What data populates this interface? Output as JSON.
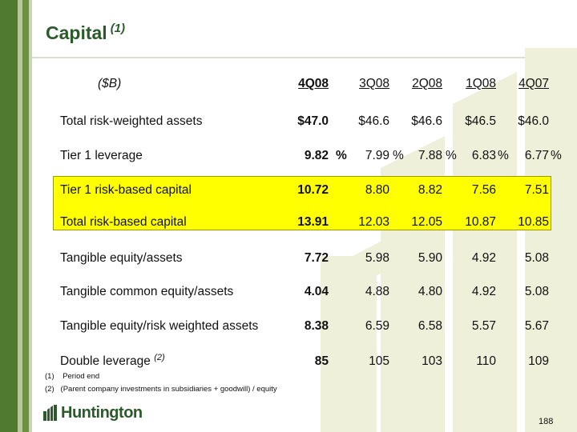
{
  "title": "Capital",
  "title_footnote": "(1)",
  "units": "($B)",
  "columns": [
    "4Q08",
    "3Q08",
    "2Q08",
    "1Q08",
    "4Q07"
  ],
  "rows": [
    {
      "label": "Total risk-weighted assets",
      "sup": "",
      "values": [
        "$47.0",
        "$46.6",
        "$46.6",
        "$46.5",
        "$46.0"
      ],
      "highlighted": false
    },
    {
      "label": "Tier 1 leverage",
      "sup": "",
      "values": [
        "9.82",
        "7.99",
        "7.88",
        "6.83",
        "6.77"
      ],
      "highlighted": false,
      "pct": "%"
    },
    {
      "label": "Tier 1 risk-based capital",
      "sup": "",
      "values": [
        "10.72",
        "8.80",
        "8.82",
        "7.56",
        "7.51"
      ],
      "highlighted": true
    },
    {
      "label": "Total risk-based capital",
      "sup": "",
      "values": [
        "13.91",
        "12.03",
        "12.05",
        "10.87",
        "10.85"
      ],
      "highlighted": true
    },
    {
      "label": "Tangible equity/assets",
      "sup": "",
      "values": [
        "7.72",
        "5.98",
        "5.90",
        "4.92",
        "5.08"
      ],
      "highlighted": false
    },
    {
      "label": "Tangible common equity/assets",
      "sup": "",
      "values": [
        "4.04",
        "4.88",
        "4.80",
        "4.92",
        "5.08"
      ],
      "highlighted": false
    },
    {
      "label": "Tangible equity/risk weighted  assets",
      "sup": "",
      "values": [
        "8.38",
        "6.59",
        "6.58",
        "5.57",
        "5.67"
      ],
      "highlighted": false
    },
    {
      "label": "Double leverage",
      "sup": "(2)",
      "values": [
        "85",
        "105",
        "103",
        "110",
        "109"
      ],
      "highlighted": false
    }
  ],
  "footnotes": [
    {
      "num": "(1)",
      "text": "Period end"
    },
    {
      "num": "(2)",
      "text": "(Parent company investments in subsidiaries + goodwill) / equity"
    }
  ],
  "logo_text": "Huntington",
  "page_number": "188",
  "colors": {
    "brand_green": "#2b5a2b",
    "highlight": "#ffff00",
    "bar_dark": "#4f7a30"
  }
}
